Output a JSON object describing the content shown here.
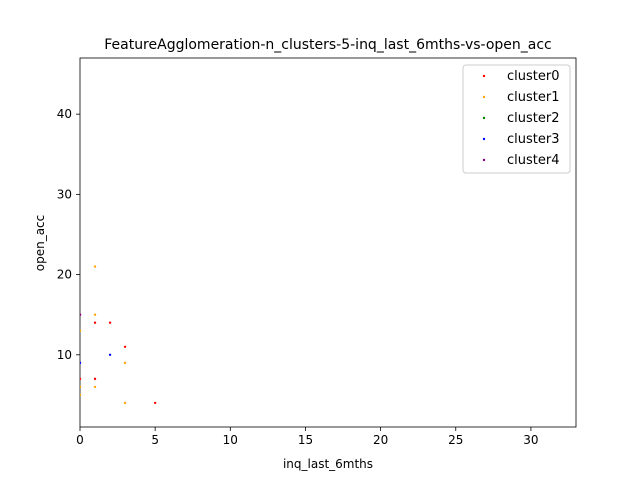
{
  "chart_data": {
    "type": "scatter",
    "title": "FeatureAgglomeration-n_clusters-5-inq_last_6mths-vs-open_acc",
    "xlabel": "inq_last_6mths",
    "ylabel": "open_acc",
    "xlim": [
      0,
      33
    ],
    "ylim": [
      1,
      47
    ],
    "xticks": [
      0,
      5,
      10,
      15,
      20,
      25,
      30
    ],
    "yticks": [
      10,
      20,
      30,
      40
    ],
    "grid": false,
    "legend_position": "top-right",
    "series": [
      {
        "name": "cluster0",
        "color": "#ff0000",
        "points": [
          [
            1,
            14
          ],
          [
            2,
            14
          ],
          [
            3,
            11
          ],
          [
            1,
            7
          ],
          [
            5,
            4
          ],
          [
            0,
            15
          ],
          [
            0,
            7
          ]
        ]
      },
      {
        "name": "cluster1",
        "color": "#ffa500",
        "points": [
          [
            1,
            21
          ],
          [
            1,
            15
          ],
          [
            3,
            9
          ],
          [
            1,
            6
          ],
          [
            3,
            4
          ],
          [
            0,
            13
          ],
          [
            0,
            6
          ],
          [
            0,
            5
          ]
        ]
      },
      {
        "name": "cluster2",
        "color": "#008000",
        "points": []
      },
      {
        "name": "cluster3",
        "color": "#0000ff",
        "points": [
          [
            2,
            10
          ],
          [
            0,
            9
          ]
        ]
      },
      {
        "name": "cluster4",
        "color": "#800080",
        "points": [
          [
            0,
            15
          ]
        ]
      }
    ]
  }
}
